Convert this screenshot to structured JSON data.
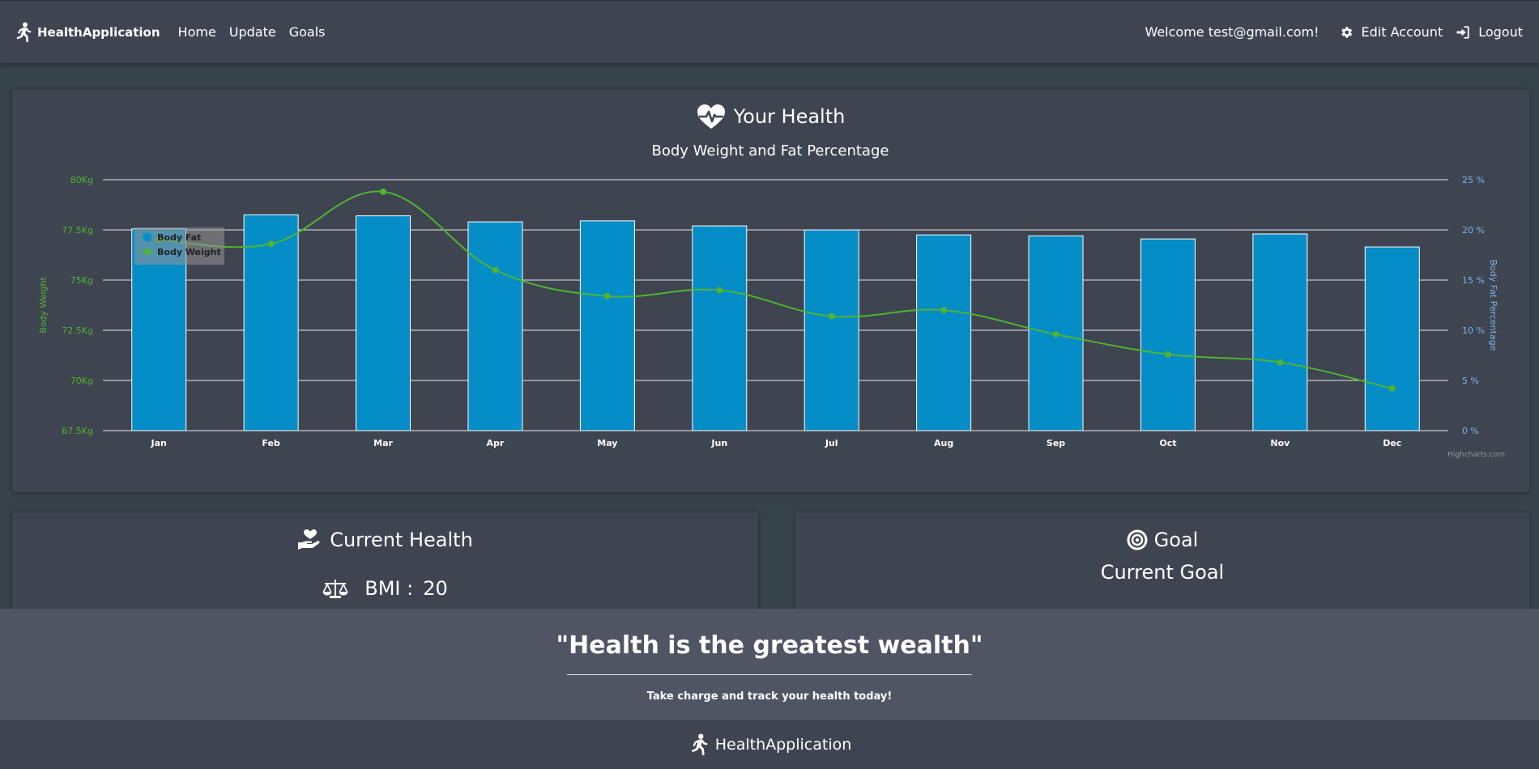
{
  "navbar": {
    "brand": "HealthApplication",
    "links": [
      "Home",
      "Update",
      "Goals"
    ],
    "welcome": "Welcome test@gmail.com!",
    "edit_account": "Edit Account",
    "logout": "Logout"
  },
  "health_card": {
    "title": "Your Health"
  },
  "chart_data": {
    "type": "bar",
    "title": "Body Weight and Fat Percentage",
    "categories": [
      "Jan",
      "Feb",
      "Mar",
      "Apr",
      "May",
      "Jun",
      "Jul",
      "Aug",
      "Sep",
      "Oct",
      "Nov",
      "Dec"
    ],
    "series": [
      {
        "name": "Body Fat",
        "type": "bar",
        "axis": "right",
        "color": "#058dc7",
        "values": [
          20.1,
          21.5,
          21.4,
          20.8,
          20.9,
          20.4,
          20.0,
          19.5,
          19.4,
          19.1,
          19.6,
          18.3
        ]
      },
      {
        "name": "Body Weight",
        "type": "line",
        "axis": "left",
        "color": "#50b432",
        "values": [
          77.0,
          76.8,
          79.4,
          75.5,
          74.2,
          74.5,
          73.2,
          73.5,
          72.3,
          71.3,
          70.9,
          69.6
        ]
      }
    ],
    "left_axis": {
      "label": "Body Weight",
      "ticks": [
        "80Kg",
        "77.5Kg",
        "75Kg",
        "72.5Kg",
        "70Kg",
        "67.5Kg"
      ],
      "range": [
        67.5,
        80
      ],
      "color": "#50b432"
    },
    "right_axis": {
      "label": "Body Fat Percentage",
      "ticks": [
        "25 %",
        "20 %",
        "15 %",
        "10 %",
        "5 %",
        "0 %"
      ],
      "range": [
        0,
        25
      ],
      "color": "#7cb5ec"
    },
    "grid": true,
    "legend_position": "top-left",
    "credits": "Highcharts.com"
  },
  "current_health": {
    "title": "Current Health",
    "bmi_label": "BMI :",
    "bmi_value": "20"
  },
  "goal": {
    "title": "Goal",
    "subtitle": "Current Goal"
  },
  "quote": {
    "text": "\"Health is the greatest wealth\"",
    "subtext": "Take charge and track your health today!"
  },
  "footer": {
    "brand": "HealthApplication"
  }
}
